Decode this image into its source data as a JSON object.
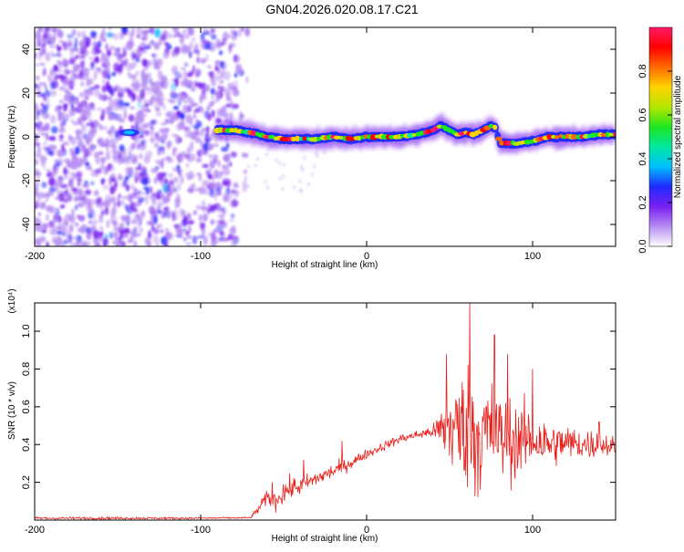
{
  "page": {
    "title": "GN04.2026.020.08.17.C21"
  },
  "chart_data": [
    {
      "type": "heatmap",
      "title": "GN04.2026.020.08.17.C21",
      "xlabel": "Height of straight line (km)",
      "ylabel": "Frequency (Hz)",
      "xlim": [
        -200,
        150
      ],
      "ylim": [
        -50,
        50
      ],
      "xticks": [
        -200,
        -100,
        0,
        100
      ],
      "xtick_labels": [
        "-200",
        "-100",
        "0",
        "100"
      ],
      "yticks": [
        -40,
        -20,
        0,
        20,
        40
      ],
      "ytick_labels": [
        "-40",
        "-20",
        "0",
        "20",
        "40"
      ],
      "colorbar": {
        "label": "Normalized spectral amplitude",
        "range": [
          0,
          1
        ],
        "ticks": [
          0,
          0.2,
          0.4,
          0.6,
          0.8
        ],
        "tick_labels": [
          "0.0",
          "0.2",
          "0.4",
          "0.6",
          "0.8"
        ],
        "colors": [
          "#ffffff",
          "#b58cf2",
          "#7a1ff0",
          "#1e2bff",
          "#00c0ff",
          "#00e8a0",
          "#1ee61e",
          "#b4e600",
          "#ffd200",
          "#ff6a00",
          "#ff0000",
          "#ff1a66"
        ]
      },
      "ridge": {
        "x": [
          -90,
          -80,
          -70,
          -60,
          -50,
          -40,
          -30,
          -20,
          -10,
          0,
          10,
          20,
          30,
          40,
          45,
          50,
          55,
          60,
          65,
          70,
          75,
          78,
          80,
          85,
          90,
          100,
          110,
          120,
          130,
          140,
          150
        ],
        "freq": [
          3,
          3,
          2,
          0,
          -1,
          -1,
          -1,
          0,
          -1,
          0,
          0,
          0,
          1,
          3,
          5,
          3,
          1,
          2,
          1,
          3,
          5,
          4,
          -3,
          -3,
          -3,
          -2,
          0,
          0,
          0,
          1,
          1
        ]
      },
      "features": [
        {
          "x": -143,
          "freq": 2,
          "value": 0.25
        }
      ]
    },
    {
      "type": "line",
      "xlabel": "Height of straight line (km)",
      "ylabel": "SNR (10 * v/v)",
      "y_multiplier": "(x10⁴)",
      "xlim": [
        -200,
        150
      ],
      "ylim": [
        0,
        1.15
      ],
      "xticks": [
        -200,
        -100,
        0,
        100
      ],
      "xtick_labels": [
        "-200",
        "-100",
        "0",
        "100"
      ],
      "yticks": [
        0.2,
        0.4,
        0.6,
        0.8,
        1.0
      ],
      "ytick_labels": [
        "0.2",
        "0.4",
        "0.6",
        "0.8",
        "1.0"
      ],
      "series": [
        {
          "name": "SNR",
          "color": "#e8201c",
          "envelope": {
            "x": [
              -200,
              -150,
              -100,
              -70,
              -65,
              -60,
              -55,
              -50,
              -45,
              -40,
              -30,
              -20,
              -10,
              0,
              10,
              20,
              30,
              40,
              45,
              50,
              55,
              60,
              65,
              70,
              75,
              80,
              90,
              100,
              110,
              120,
              130,
              140,
              150
            ],
            "mean": [
              0.01,
              0.01,
              0.01,
              0.012,
              0.06,
              0.12,
              0.1,
              0.15,
              0.17,
              0.18,
              0.22,
              0.26,
              0.3,
              0.35,
              0.39,
              0.43,
              0.45,
              0.47,
              0.48,
              0.5,
              0.48,
              0.5,
              0.47,
              0.45,
              0.46,
              0.44,
              0.42,
              0.43,
              0.4,
              0.41,
              0.4,
              0.4,
              0.39
            ],
            "spread": [
              0.008,
              0.008,
              0.006,
              0.005,
              0.03,
              0.05,
              0.06,
              0.08,
              0.07,
              0.06,
              0.05,
              0.05,
              0.04,
              0.03,
              0.03,
              0.03,
              0.03,
              0.04,
              0.15,
              0.3,
              0.35,
              0.4,
              0.45,
              0.4,
              0.35,
              0.3,
              0.25,
              0.2,
              0.15,
              0.12,
              0.1,
              0.1,
              0.06
            ]
          },
          "peaks": [
            {
              "x": -57,
              "y": 0.2
            },
            {
              "x": -38,
              "y": 0.32
            },
            {
              "x": -15,
              "y": 0.42
            },
            {
              "x": 48,
              "y": 0.88
            },
            {
              "x": 62,
              "y": 1.15
            },
            {
              "x": 77,
              "y": 0.98
            },
            {
              "x": 85,
              "y": 0.88
            },
            {
              "x": 100,
              "y": 0.8
            },
            {
              "x": 140,
              "y": 0.52
            }
          ]
        }
      ]
    }
  ]
}
